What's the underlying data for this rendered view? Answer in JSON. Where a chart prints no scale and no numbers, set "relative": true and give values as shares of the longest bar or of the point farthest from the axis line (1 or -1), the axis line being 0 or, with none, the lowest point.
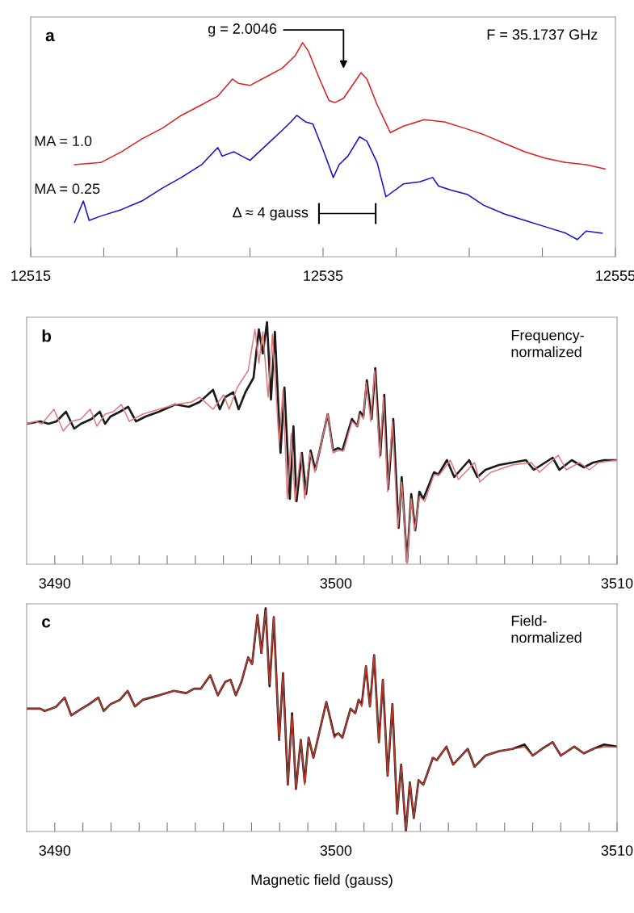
{
  "chart_data": [
    {
      "type": "line",
      "relative": true,
      "xlim": [
        12515,
        12555
      ],
      "xticks": [
        12515,
        {
          "value": 12520,
          "label": null
        },
        {
          "value": 12525,
          "label": null
        },
        {
          "value": 12530,
          "label": null
        },
        12535,
        {
          "value": 12540,
          "label": null
        },
        {
          "value": 12545,
          "label": null
        },
        {
          "value": 12550,
          "label": null
        },
        12555
      ],
      "annotations": [
        "a",
        "F = 35.1737 GHz",
        "g = 2.0046",
        "Δ ≈ 4 gauss"
      ],
      "series": [
        {
          "name": "MA = 1.0",
          "color": "#e02020",
          "x": [
            12518.0,
            12519.8,
            12521.2,
            12522.6,
            12524.0,
            12525.3,
            12526.7,
            12527.8,
            12528.8,
            12529.2,
            12530.0,
            12531.1,
            12532.2,
            12533.1,
            12533.6,
            12534.0,
            12534.7,
            12535.4,
            12535.8,
            12536.4,
            12537.1,
            12537.6,
            12538.0,
            12538.7,
            12539.6,
            12540.5,
            12541.9,
            12543.3,
            12544.7,
            12546.0,
            12547.4,
            12548.8,
            12550.2,
            12551.6,
            12553.0,
            12554.3
          ],
          "values": [
            0.43,
            0.44,
            0.49,
            0.55,
            0.6,
            0.66,
            0.71,
            0.75,
            0.83,
            0.81,
            0.8,
            0.84,
            0.88,
            0.94,
            1.0,
            0.96,
            0.84,
            0.73,
            0.72,
            0.74,
            0.81,
            0.86,
            0.83,
            0.71,
            0.58,
            0.61,
            0.64,
            0.63,
            0.6,
            0.57,
            0.53,
            0.49,
            0.46,
            0.44,
            0.43,
            0.41
          ]
        },
        {
          "name": "MA = 0.25",
          "color": "#1010d0",
          "x": [
            12518.0,
            12518.6,
            12519.0,
            12519.8,
            12521.2,
            12522.6,
            12524.0,
            12525.3,
            12526.7,
            12527.8,
            12528.1,
            12528.9,
            12530.0,
            12531.1,
            12532.2,
            12532.8,
            12533.2,
            12533.8,
            12534.3,
            12535.0,
            12535.7,
            12536.1,
            12536.7,
            12537.5,
            12538.0,
            12538.7,
            12539.3,
            12540.5,
            12541.6,
            12542.5,
            12542.9,
            12543.8,
            12544.9,
            12546.0,
            12547.4,
            12548.8,
            12550.2,
            12551.6,
            12552.4,
            12553.0,
            12554.1
          ],
          "values": [
            0.16,
            0.26,
            0.17,
            0.19,
            0.22,
            0.26,
            0.32,
            0.37,
            0.43,
            0.51,
            0.47,
            0.49,
            0.45,
            0.52,
            0.59,
            0.63,
            0.66,
            0.63,
            0.62,
            0.5,
            0.37,
            0.43,
            0.47,
            0.56,
            0.54,
            0.44,
            0.28,
            0.34,
            0.35,
            0.37,
            0.33,
            0.31,
            0.29,
            0.24,
            0.2,
            0.17,
            0.14,
            0.11,
            0.08,
            0.12,
            0.11
          ]
        }
      ]
    },
    {
      "type": "line",
      "relative": true,
      "xlim": [
        3489,
        3510
      ],
      "xticks": [
        3490,
        {
          "value": 3491,
          "label": null
        },
        {
          "value": 3492,
          "label": null
        },
        {
          "value": 3493,
          "label": null
        },
        {
          "value": 3494,
          "label": null
        },
        {
          "value": 3495,
          "label": null
        },
        {
          "value": 3496,
          "label": null
        },
        {
          "value": 3497,
          "label": null
        },
        {
          "value": 3498,
          "label": null
        },
        {
          "value": 3499,
          "label": null
        },
        3500,
        {
          "value": 3501,
          "label": null
        },
        {
          "value": 3502,
          "label": null
        },
        {
          "value": 3503,
          "label": null
        },
        {
          "value": 3504,
          "label": null
        },
        {
          "value": 3505,
          "label": null
        },
        {
          "value": 3506,
          "label": null
        },
        {
          "value": 3507,
          "label": null
        },
        {
          "value": 3508,
          "label": null
        },
        {
          "value": 3509,
          "label": null
        },
        3510
      ],
      "annotations": [
        "b",
        "Frequency-\nnormalized"
      ],
      "series": [
        {
          "color": "#1a1a1a",
          "x": [
            3489.0,
            3489.49,
            3489.78,
            3490.06,
            3490.4,
            3490.69,
            3490.93,
            3491.31,
            3491.6,
            3491.79,
            3491.98,
            3492.32,
            3492.61,
            3492.89,
            3493.23,
            3493.71,
            3494.29,
            3494.77,
            3495.15,
            3495.63,
            3495.87,
            3496.06,
            3496.35,
            3496.54,
            3496.78,
            3497.07,
            3497.26,
            3497.4,
            3497.55,
            3497.69,
            3497.83,
            3498.03,
            3498.17,
            3498.36,
            3498.49,
            3498.6,
            3498.79,
            3498.94,
            3499.1,
            3499.27,
            3499.71,
            3499.9,
            3500.09,
            3500.23,
            3500.57,
            3500.76,
            3500.86,
            3500.98,
            3501.1,
            3501.27,
            3501.4,
            3501.58,
            3501.72,
            3501.86,
            3502.04,
            3502.23,
            3502.34,
            3502.53,
            3502.68,
            3502.82,
            3502.97,
            3503.11,
            3503.49,
            3503.64,
            3503.95,
            3504.21,
            3504.74,
            3505.03,
            3505.32,
            3505.8,
            3506.28,
            3506.76,
            3507.04,
            3507.71,
            3507.95,
            3508.39,
            3508.82,
            3509.15,
            3509.54,
            3510.0
          ],
          "values": [
            0.58,
            0.59,
            0.58,
            0.59,
            0.63,
            0.56,
            0.58,
            0.6,
            0.63,
            0.58,
            0.61,
            0.63,
            0.65,
            0.59,
            0.61,
            0.63,
            0.66,
            0.65,
            0.67,
            0.72,
            0.64,
            0.69,
            0.71,
            0.64,
            0.71,
            0.77,
            0.97,
            0.87,
            1.0,
            0.68,
            0.96,
            0.46,
            0.73,
            0.27,
            0.57,
            0.26,
            0.46,
            0.29,
            0.47,
            0.39,
            0.62,
            0.47,
            0.48,
            0.47,
            0.6,
            0.57,
            0.63,
            0.61,
            0.76,
            0.6,
            0.81,
            0.45,
            0.7,
            0.31,
            0.6,
            0.15,
            0.36,
            0.01,
            0.29,
            0.14,
            0.3,
            0.27,
            0.38,
            0.37,
            0.43,
            0.36,
            0.43,
            0.36,
            0.39,
            0.41,
            0.42,
            0.43,
            0.39,
            0.44,
            0.39,
            0.43,
            0.4,
            0.42,
            0.43,
            0.43
          ]
        },
        {
          "color": "#e07a7a",
          "x": [
            3489.0,
            3489.3,
            3489.54,
            3489.97,
            3490.3,
            3490.59,
            3490.93,
            3491.26,
            3491.5,
            3491.79,
            3492.08,
            3492.37,
            3492.65,
            3493.13,
            3493.71,
            3494.29,
            3494.86,
            3495.15,
            3495.44,
            3495.63,
            3496.01,
            3496.2,
            3496.49,
            3496.88,
            3497.12,
            3497.26,
            3497.4,
            3497.59,
            3497.74,
            3497.98,
            3498.12,
            3498.27,
            3498.41,
            3498.55,
            3498.75,
            3498.89,
            3499.08,
            3499.25,
            3499.71,
            3499.9,
            3500.09,
            3500.28,
            3500.57,
            3500.76,
            3500.86,
            3500.98,
            3501.08,
            3501.24,
            3501.38,
            3501.56,
            3501.69,
            3501.84,
            3502.01,
            3502.2,
            3502.34,
            3502.53,
            3502.68,
            3502.8,
            3502.97,
            3503.16,
            3503.49,
            3503.69,
            3504.07,
            3504.36,
            3504.93,
            3505.12,
            3505.51,
            3506.28,
            3506.95,
            3507.24,
            3507.91,
            3508.19,
            3508.67,
            3509.01,
            3509.35,
            3510.0
          ],
          "values": [
            0.58,
            0.59,
            0.58,
            0.64,
            0.55,
            0.59,
            0.6,
            0.64,
            0.57,
            0.62,
            0.63,
            0.66,
            0.59,
            0.62,
            0.64,
            0.66,
            0.67,
            0.69,
            0.66,
            0.64,
            0.7,
            0.64,
            0.73,
            0.8,
            0.97,
            0.83,
            0.96,
            0.69,
            0.95,
            0.5,
            0.72,
            0.27,
            0.54,
            0.26,
            0.46,
            0.27,
            0.46,
            0.38,
            0.62,
            0.46,
            0.47,
            0.47,
            0.59,
            0.57,
            0.62,
            0.6,
            0.75,
            0.59,
            0.8,
            0.44,
            0.69,
            0.3,
            0.59,
            0.15,
            0.34,
            0.0,
            0.27,
            0.14,
            0.28,
            0.26,
            0.37,
            0.37,
            0.43,
            0.35,
            0.42,
            0.34,
            0.38,
            0.41,
            0.42,
            0.38,
            0.45,
            0.39,
            0.42,
            0.39,
            0.42,
            0.43
          ]
        }
      ]
    },
    {
      "type": "line",
      "relative": true,
      "xlim": [
        3489,
        3510
      ],
      "xlabel": "Magnetic field (gauss)",
      "xticks": [
        3490,
        {
          "value": 3491,
          "label": null
        },
        {
          "value": 3492,
          "label": null
        },
        {
          "value": 3493,
          "label": null
        },
        {
          "value": 3494,
          "label": null
        },
        {
          "value": 3495,
          "label": null
        },
        {
          "value": 3496,
          "label": null
        },
        {
          "value": 3497,
          "label": null
        },
        {
          "value": 3498,
          "label": null
        },
        {
          "value": 3499,
          "label": null
        },
        3500,
        {
          "value": 3501,
          "label": null
        },
        {
          "value": 3502,
          "label": null
        },
        {
          "value": 3503,
          "label": null
        },
        {
          "value": 3504,
          "label": null
        },
        {
          "value": 3505,
          "label": null
        },
        {
          "value": 3506,
          "label": null
        },
        {
          "value": 3507,
          "label": null
        },
        {
          "value": 3508,
          "label": null
        },
        {
          "value": 3509,
          "label": null
        },
        3510
      ],
      "annotations": [
        "c",
        "Field-\nnormalized"
      ],
      "series": [
        {
          "color": "#1a1a1a",
          "x": [
            3489.0,
            3489.49,
            3489.63,
            3489.87,
            3490.06,
            3490.35,
            3490.59,
            3490.83,
            3491.22,
            3491.55,
            3491.74,
            3491.98,
            3492.32,
            3492.59,
            3492.85,
            3493.13,
            3493.71,
            3494.24,
            3494.67,
            3494.96,
            3495.2,
            3495.53,
            3495.8,
            3496.06,
            3496.25,
            3496.44,
            3496.64,
            3496.88,
            3497.02,
            3497.21,
            3497.35,
            3497.5,
            3497.64,
            3497.79,
            3497.98,
            3498.12,
            3498.29,
            3498.44,
            3498.58,
            3498.75,
            3498.89,
            3499.03,
            3499.2,
            3499.66,
            3499.94,
            3500.09,
            3500.23,
            3500.52,
            3500.69,
            3500.81,
            3500.92,
            3501.07,
            3501.21,
            3501.36,
            3501.53,
            3501.67,
            3501.84,
            3502.01,
            3502.18,
            3502.32,
            3502.49,
            3502.63,
            3502.77,
            3502.94,
            3503.11,
            3503.45,
            3503.59,
            3503.93,
            3504.17,
            3504.69,
            3504.93,
            3505.32,
            3505.8,
            3506.28,
            3506.71,
            3507.0,
            3507.33,
            3507.71,
            3508.0,
            3508.48,
            3508.82,
            3509.15,
            3509.54,
            3510.0
          ],
          "values": [
            0.55,
            0.55,
            0.54,
            0.55,
            0.56,
            0.6,
            0.52,
            0.54,
            0.57,
            0.6,
            0.54,
            0.57,
            0.59,
            0.63,
            0.56,
            0.59,
            0.61,
            0.63,
            0.62,
            0.64,
            0.64,
            0.7,
            0.61,
            0.67,
            0.68,
            0.61,
            0.67,
            0.78,
            0.75,
            0.97,
            0.8,
            1.0,
            0.65,
            0.96,
            0.41,
            0.71,
            0.21,
            0.53,
            0.19,
            0.41,
            0.22,
            0.42,
            0.33,
            0.58,
            0.43,
            0.44,
            0.42,
            0.55,
            0.53,
            0.59,
            0.57,
            0.74,
            0.56,
            0.79,
            0.4,
            0.68,
            0.25,
            0.57,
            0.08,
            0.3,
            0.0,
            0.22,
            0.06,
            0.23,
            0.21,
            0.33,
            0.32,
            0.38,
            0.3,
            0.37,
            0.29,
            0.34,
            0.36,
            0.37,
            0.39,
            0.34,
            0.37,
            0.4,
            0.34,
            0.38,
            0.35,
            0.37,
            0.39,
            0.38
          ]
        },
        {
          "color": "#c0392b",
          "x": [
            3489.0,
            3489.49,
            3489.63,
            3489.87,
            3490.06,
            3490.35,
            3490.59,
            3490.83,
            3491.22,
            3491.55,
            3491.74,
            3491.98,
            3492.32,
            3492.59,
            3492.85,
            3493.13,
            3493.71,
            3494.24,
            3494.67,
            3494.96,
            3495.2,
            3495.53,
            3495.8,
            3496.06,
            3496.25,
            3496.44,
            3496.64,
            3496.88,
            3497.02,
            3497.21,
            3497.35,
            3497.5,
            3497.64,
            3497.79,
            3497.98,
            3498.12,
            3498.29,
            3498.44,
            3498.58,
            3498.75,
            3498.89,
            3499.03,
            3499.2,
            3499.66,
            3499.94,
            3500.09,
            3500.23,
            3500.52,
            3500.69,
            3500.81,
            3500.92,
            3501.07,
            3501.21,
            3501.36,
            3501.53,
            3501.67,
            3501.84,
            3502.01,
            3502.18,
            3502.32,
            3502.49,
            3502.63,
            3502.77,
            3502.94,
            3503.11,
            3503.45,
            3503.59,
            3503.93,
            3504.17,
            3504.69,
            3504.93,
            3505.32,
            3505.8,
            3506.28,
            3506.71,
            3507.0,
            3507.33,
            3507.71,
            3508.0,
            3508.48,
            3508.82,
            3509.15,
            3509.54,
            3510.0
          ],
          "values": [
            0.55,
            0.55,
            0.54,
            0.55,
            0.56,
            0.6,
            0.52,
            0.54,
            0.57,
            0.6,
            0.54,
            0.57,
            0.59,
            0.63,
            0.56,
            0.59,
            0.61,
            0.63,
            0.62,
            0.64,
            0.64,
            0.7,
            0.61,
            0.67,
            0.68,
            0.61,
            0.67,
            0.78,
            0.75,
            0.97,
            0.8,
            0.99,
            0.66,
            0.96,
            0.41,
            0.71,
            0.21,
            0.52,
            0.19,
            0.41,
            0.21,
            0.42,
            0.33,
            0.58,
            0.42,
            0.44,
            0.42,
            0.55,
            0.53,
            0.59,
            0.56,
            0.74,
            0.56,
            0.79,
            0.4,
            0.68,
            0.25,
            0.57,
            0.08,
            0.3,
            0.0,
            0.22,
            0.06,
            0.23,
            0.21,
            0.33,
            0.32,
            0.38,
            0.3,
            0.37,
            0.29,
            0.34,
            0.36,
            0.37,
            0.38,
            0.34,
            0.37,
            0.4,
            0.34,
            0.38,
            0.35,
            0.37,
            0.38,
            0.38
          ]
        }
      ]
    }
  ]
}
